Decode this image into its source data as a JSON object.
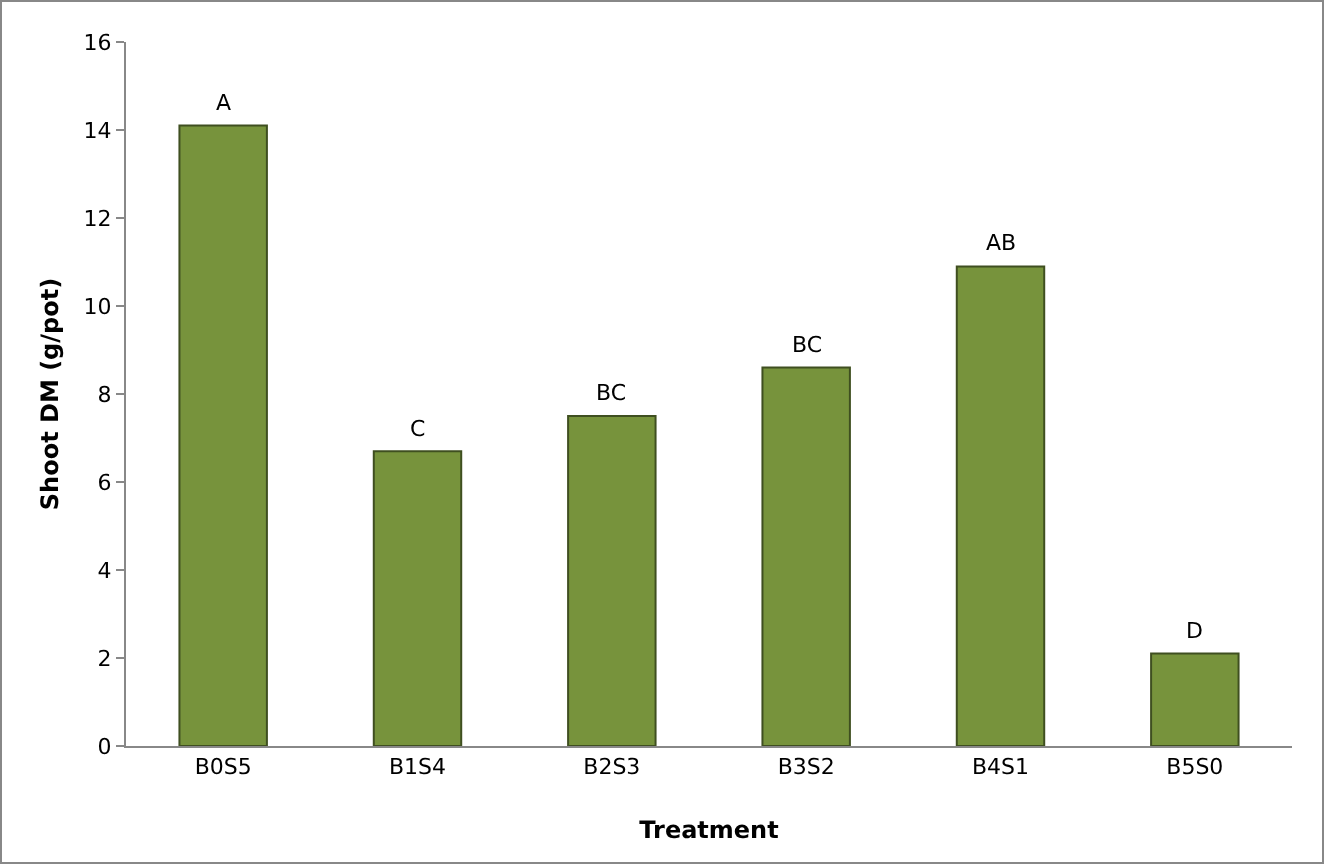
{
  "chart_data": {
    "type": "bar",
    "xlabel": "Treatment",
    "ylabel": "Shoot DM (g/pot)",
    "categories": [
      "B0S5",
      "B1S4",
      "B2S3",
      "B3S2",
      "B4S1",
      "B5S0"
    ],
    "values": [
      14.1,
      6.7,
      7.5,
      8.6,
      10.9,
      2.1
    ],
    "color": "#77933c",
    "ylim": [
      0,
      16
    ],
    "yticks": [
      0,
      2,
      4,
      6,
      8,
      10,
      12,
      14,
      16
    ],
    "grid": false,
    "legend": false,
    "annotations": [
      {
        "text": "A",
        "x": "B0S5",
        "y": 14.1
      },
      {
        "text": "C",
        "x": "B1S4",
        "y": 6.7
      },
      {
        "text": "BC",
        "x": "B2S3",
        "y": 7.5
      },
      {
        "text": "BC",
        "x": "B3S2",
        "y": 8.6
      },
      {
        "text": "AB",
        "x": "B4S1",
        "y": 10.9
      },
      {
        "text": "D",
        "x": "B5S0",
        "y": 2.1
      }
    ]
  }
}
